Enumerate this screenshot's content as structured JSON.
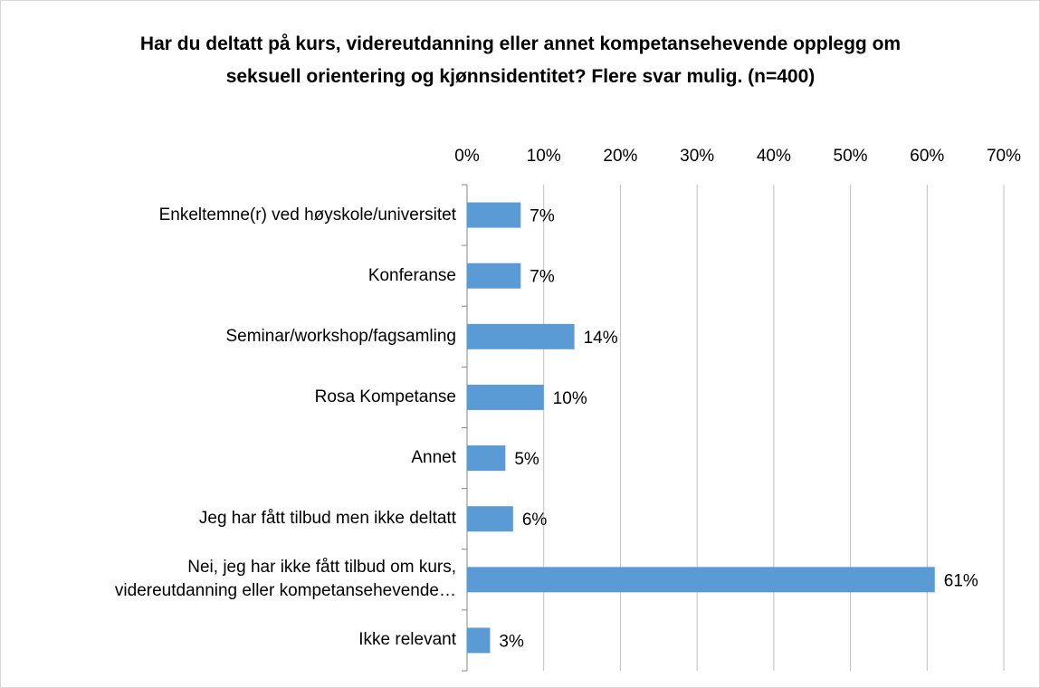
{
  "chart_data": {
    "type": "barh",
    "title": "Har du deltatt på kurs, videreutdanning eller annet kompetansehevende opplegg om seksuell orientering og kjønnsidentitet? Flere svar mulig. (n=400)",
    "categories": [
      "Enkeltemne(r) ved høyskole/universitet",
      "Konferanse",
      "Seminar/workshop/fagsamling",
      "Rosa Kompetanse",
      "Annet",
      "Jeg har fått tilbud men ikke deltatt",
      "Nei, jeg har ikke fått tilbud om kurs, videreutdanning eller kompetansehevende…",
      "Ikke relevant"
    ],
    "values": [
      7,
      7,
      14,
      10,
      5,
      6,
      61,
      3
    ],
    "value_labels": [
      "7%",
      "7%",
      "14%",
      "10%",
      "5%",
      "6%",
      "61%",
      "3%"
    ],
    "color": "#5b9bd5",
    "xlim": [
      0,
      70
    ],
    "xticks": [
      {
        "value": 0,
        "label": "0%"
      },
      {
        "value": 10,
        "label": "10%"
      },
      {
        "value": 20,
        "label": "20%"
      },
      {
        "value": 30,
        "label": "30%"
      },
      {
        "value": 40,
        "label": "40%"
      },
      {
        "value": 50,
        "label": "50%"
      },
      {
        "value": 60,
        "label": "60%"
      },
      {
        "value": 70,
        "label": "70%"
      }
    ],
    "grid": true
  }
}
